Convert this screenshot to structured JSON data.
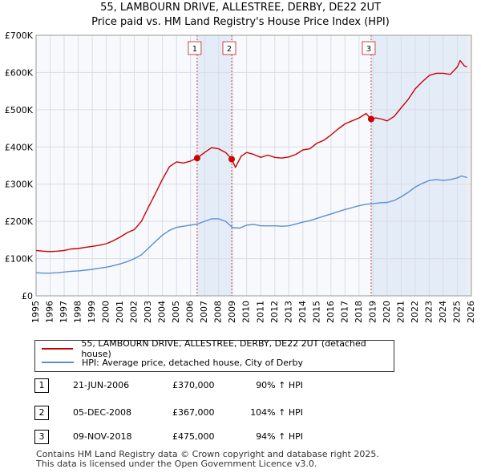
{
  "chart_data": {
    "type": "line",
    "title": "55, LAMBOURN DRIVE, ALLESTREE, DERBY, DE22 2UT",
    "subtitle": "Price paid vs. HM Land Registry's House Price Index (HPI)",
    "xlim": [
      1995,
      2026
    ],
    "ylim": [
      0,
      700000
    ],
    "x_ticks": [
      1995,
      1996,
      1997,
      1998,
      1999,
      2000,
      2001,
      2002,
      2003,
      2004,
      2005,
      2006,
      2007,
      2008,
      2009,
      2010,
      2011,
      2012,
      2013,
      2014,
      2015,
      2016,
      2017,
      2018,
      2019,
      2020,
      2021,
      2022,
      2023,
      2024,
      2025,
      2026
    ],
    "y_ticks": [
      {
        "value": 0,
        "label": "£0"
      },
      {
        "value": 100000,
        "label": "£100K"
      },
      {
        "value": 200000,
        "label": "£200K"
      },
      {
        "value": 300000,
        "label": "£300K"
      },
      {
        "value": 400000,
        "label": "£400K"
      },
      {
        "value": 500000,
        "label": "£500K"
      },
      {
        "value": 600000,
        "label": "£600K"
      },
      {
        "value": 700000,
        "label": "£700K"
      }
    ],
    "grid": true,
    "series": [
      {
        "name": "55, LAMBOURN DRIVE, ALLESTREE, DERBY, DE22 2UT (detached house)",
        "color": "#cc0000",
        "points": [
          [
            1995.0,
            122000
          ],
          [
            1995.5,
            120000
          ],
          [
            1996.0,
            119000
          ],
          [
            1996.5,
            120000
          ],
          [
            1997.0,
            122000
          ],
          [
            1997.5,
            126000
          ],
          [
            1998.0,
            127000
          ],
          [
            1998.5,
            130000
          ],
          [
            1999.0,
            133000
          ],
          [
            1999.5,
            136000
          ],
          [
            2000.0,
            140000
          ],
          [
            2000.5,
            148000
          ],
          [
            2001.0,
            158000
          ],
          [
            2001.5,
            170000
          ],
          [
            2002.0,
            178000
          ],
          [
            2002.5,
            200000
          ],
          [
            2003.0,
            238000
          ],
          [
            2003.5,
            275000
          ],
          [
            2004.0,
            313000
          ],
          [
            2004.5,
            347000
          ],
          [
            2005.0,
            360000
          ],
          [
            2005.5,
            357000
          ],
          [
            2006.0,
            362000
          ],
          [
            2006.47,
            370000
          ],
          [
            2007.0,
            385000
          ],
          [
            2007.5,
            398000
          ],
          [
            2008.0,
            395000
          ],
          [
            2008.5,
            385000
          ],
          [
            2008.75,
            375000
          ],
          [
            2008.93,
            367000
          ],
          [
            2009.2,
            345000
          ],
          [
            2009.6,
            375000
          ],
          [
            2010.0,
            385000
          ],
          [
            2010.5,
            380000
          ],
          [
            2011.0,
            372000
          ],
          [
            2011.5,
            378000
          ],
          [
            2012.0,
            372000
          ],
          [
            2012.5,
            370000
          ],
          [
            2013.0,
            373000
          ],
          [
            2013.5,
            380000
          ],
          [
            2014.0,
            392000
          ],
          [
            2014.5,
            395000
          ],
          [
            2015.0,
            410000
          ],
          [
            2015.5,
            418000
          ],
          [
            2016.0,
            432000
          ],
          [
            2016.5,
            448000
          ],
          [
            2017.0,
            462000
          ],
          [
            2017.5,
            470000
          ],
          [
            2018.0,
            478000
          ],
          [
            2018.5,
            490000
          ],
          [
            2018.86,
            475000
          ],
          [
            2019.2,
            478000
          ],
          [
            2019.6,
            475000
          ],
          [
            2020.0,
            470000
          ],
          [
            2020.5,
            482000
          ],
          [
            2021.0,
            505000
          ],
          [
            2021.5,
            528000
          ],
          [
            2022.0,
            556000
          ],
          [
            2022.5,
            575000
          ],
          [
            2023.0,
            592000
          ],
          [
            2023.5,
            598000
          ],
          [
            2024.0,
            598000
          ],
          [
            2024.5,
            595000
          ],
          [
            2025.0,
            615000
          ],
          [
            2025.2,
            632000
          ],
          [
            2025.5,
            618000
          ],
          [
            2025.7,
            615000
          ]
        ]
      },
      {
        "name": "HPI: Average price, detached house, City of Derby",
        "color": "#5b8fd0",
        "points": [
          [
            1995.0,
            62000
          ],
          [
            1995.5,
            61000
          ],
          [
            1996.0,
            61000
          ],
          [
            1996.5,
            62000
          ],
          [
            1997.0,
            64000
          ],
          [
            1997.5,
            66000
          ],
          [
            1998.0,
            67000
          ],
          [
            1998.5,
            69000
          ],
          [
            1999.0,
            71000
          ],
          [
            1999.5,
            74000
          ],
          [
            2000.0,
            77000
          ],
          [
            2000.5,
            81000
          ],
          [
            2001.0,
            86000
          ],
          [
            2001.5,
            92000
          ],
          [
            2002.0,
            100000
          ],
          [
            2002.5,
            110000
          ],
          [
            2003.0,
            128000
          ],
          [
            2003.5,
            146000
          ],
          [
            2004.0,
            163000
          ],
          [
            2004.5,
            176000
          ],
          [
            2005.0,
            184000
          ],
          [
            2005.5,
            187000
          ],
          [
            2006.0,
            190000
          ],
          [
            2006.5,
            193000
          ],
          [
            2007.0,
            200000
          ],
          [
            2007.5,
            207000
          ],
          [
            2008.0,
            207000
          ],
          [
            2008.5,
            200000
          ],
          [
            2009.0,
            183000
          ],
          [
            2009.5,
            182000
          ],
          [
            2010.0,
            190000
          ],
          [
            2010.5,
            192000
          ],
          [
            2011.0,
            188000
          ],
          [
            2011.5,
            188000
          ],
          [
            2012.0,
            188000
          ],
          [
            2012.5,
            187000
          ],
          [
            2013.0,
            188000
          ],
          [
            2013.5,
            193000
          ],
          [
            2014.0,
            198000
          ],
          [
            2014.5,
            202000
          ],
          [
            2015.0,
            208000
          ],
          [
            2015.5,
            214000
          ],
          [
            2016.0,
            220000
          ],
          [
            2016.5,
            226000
          ],
          [
            2017.0,
            232000
          ],
          [
            2017.5,
            237000
          ],
          [
            2018.0,
            242000
          ],
          [
            2018.5,
            246000
          ],
          [
            2019.0,
            248000
          ],
          [
            2019.5,
            250000
          ],
          [
            2020.0,
            251000
          ],
          [
            2020.5,
            256000
          ],
          [
            2021.0,
            266000
          ],
          [
            2021.5,
            278000
          ],
          [
            2022.0,
            292000
          ],
          [
            2022.5,
            302000
          ],
          [
            2023.0,
            310000
          ],
          [
            2023.5,
            312000
          ],
          [
            2024.0,
            310000
          ],
          [
            2024.5,
            312000
          ],
          [
            2025.0,
            317000
          ],
          [
            2025.3,
            322000
          ],
          [
            2025.7,
            318000
          ]
        ]
      }
    ],
    "shaded_periods": [
      [
        2006.47,
        2008.93
      ],
      [
        2018.86,
        2025.7
      ]
    ],
    "projection_start": 2025.7,
    "markers": [
      {
        "label": "1",
        "x": 2006.47,
        "y": 370000
      },
      {
        "label": "2",
        "x": 2008.93,
        "y": 367000
      },
      {
        "label": "3",
        "x": 2018.86,
        "y": 475000
      }
    ]
  },
  "legend": {
    "series1": "55, LAMBOURN DRIVE, ALLESTREE, DERBY, DE22 2UT (detached house)",
    "series2": "HPI: Average price, detached house, City of Derby"
  },
  "sales": [
    {
      "num": "1",
      "date": "21-JUN-2006",
      "price": "£370,000",
      "hpi": "90% ↑ HPI"
    },
    {
      "num": "2",
      "date": "05-DEC-2008",
      "price": "£367,000",
      "hpi": "104% ↑ HPI"
    },
    {
      "num": "3",
      "date": "09-NOV-2018",
      "price": "£475,000",
      "hpi": "94% ↑ HPI"
    }
  ],
  "footer": {
    "line1": "Contains HM Land Registry data © Crown copyright and database right 2025.",
    "line2": "This data is licensed under the Open Government Licence v3.0."
  }
}
